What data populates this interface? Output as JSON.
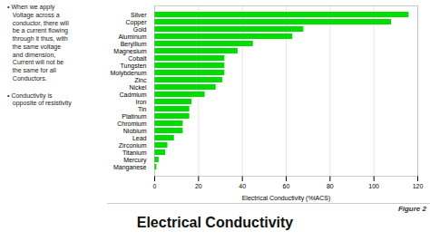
{
  "chart_data": {
    "type": "bar",
    "orientation": "horizontal",
    "title": "Electrical Conductivity",
    "x_label": "Electrical Conductivity (%IACS)",
    "categories": [
      "Silver",
      "Copper",
      "Gold",
      "Aluminum",
      "Beryllium",
      "Magnesium",
      "Cobalt",
      "Tungsten",
      "Molybdenum",
      "Zinc",
      "Nickel",
      "Cadmium",
      "Iron",
      "Tin",
      "Platinum",
      "Chromium",
      "Niobium",
      "Lead",
      "Zirconium",
      "Titanium",
      "Mercury",
      "Manganese"
    ],
    "values": [
      116,
      108,
      68,
      63,
      45,
      38,
      32,
      32,
      32,
      31,
      28,
      23,
      17,
      16,
      16,
      13,
      13,
      9,
      6,
      5,
      2,
      1
    ],
    "color": "#00dd00",
    "xlim": [
      0,
      120
    ],
    "xticks": [
      0,
      20,
      40,
      60,
      80,
      100,
      120
    ],
    "grid": true,
    "annotations": [
      "• When we apply\n   Voltage across a\n   conductor, there will\n   be a current flowing\n   through it thus, with\n   the same voltage\n   and dimension,\n   Current will not be\n   the same for all\n   Conductors.",
      "• Conductivity is\n   opposite of resistivity",
      "Figure 2"
    ]
  }
}
